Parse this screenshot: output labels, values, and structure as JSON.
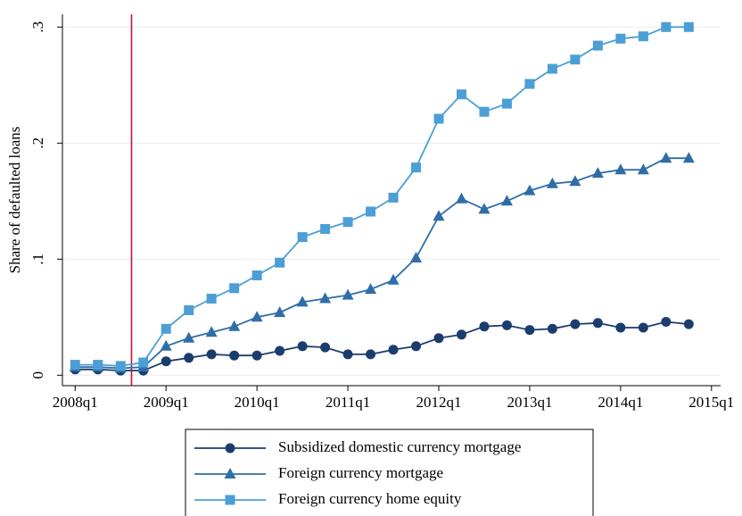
{
  "chart_data": {
    "type": "line",
    "y_label": "Share of defaulted loans",
    "x": [
      2008,
      2008.25,
      2008.5,
      2008.75,
      2009,
      2009.25,
      2009.5,
      2009.75,
      2010,
      2010.25,
      2010.5,
      2010.75,
      2011,
      2011.25,
      2011.5,
      2011.75,
      2012,
      2012.25,
      2012.5,
      2012.75,
      2013,
      2013.25,
      2013.5,
      2013.75,
      2014,
      2014.25,
      2014.5,
      2014.75
    ],
    "series": [
      {
        "name": "Subsidized domestic currency mortgage",
        "color": "#1b3d6e",
        "marker": "circle",
        "values": [
          0.005,
          0.005,
          0.004,
          0.004,
          0.012,
          0.015,
          0.018,
          0.017,
          0.017,
          0.021,
          0.025,
          0.024,
          0.018,
          0.018,
          0.022,
          0.025,
          0.032,
          0.035,
          0.042,
          0.043,
          0.039,
          0.04,
          0.044,
          0.045,
          0.041,
          0.041,
          0.046,
          0.044
        ]
      },
      {
        "name": "Foreign currency mortgage",
        "color": "#2e6ea8",
        "marker": "triangle",
        "values": [
          0.007,
          0.007,
          0.006,
          0.007,
          0.025,
          0.032,
          0.037,
          0.042,
          0.05,
          0.054,
          0.063,
          0.066,
          0.069,
          0.074,
          0.082,
          0.101,
          0.137,
          0.152,
          0.143,
          0.15,
          0.159,
          0.165,
          0.167,
          0.174,
          0.177,
          0.177,
          0.187,
          0.187
        ]
      },
      {
        "name": "Foreign currency home equity",
        "color": "#4b9fd5",
        "marker": "square",
        "values": [
          0.009,
          0.009,
          0.008,
          0.011,
          0.04,
          0.056,
          0.066,
          0.075,
          0.086,
          0.097,
          0.119,
          0.126,
          0.132,
          0.141,
          0.153,
          0.179,
          0.221,
          0.242,
          0.227,
          0.234,
          0.251,
          0.264,
          0.272,
          0.284,
          0.29,
          0.292,
          0.3,
          0.3
        ]
      }
    ],
    "xlim": [
      2007.86,
      2015.1
    ],
    "xticks": [
      {
        "value": 2008,
        "label": "2008q1"
      },
      {
        "value": 2009,
        "label": "2009q1"
      },
      {
        "value": 2010,
        "label": "2010q1"
      },
      {
        "value": 2011,
        "label": "2011q1"
      },
      {
        "value": 2012,
        "label": "2012q1"
      },
      {
        "value": 2013,
        "label": "2013q1"
      },
      {
        "value": 2014,
        "label": "2014q1"
      },
      {
        "value": 2015,
        "label": "2015q1"
      }
    ],
    "ylim": [
      -0.009,
      0.311
    ],
    "yticks": [
      0,
      {
        "value": 0.1,
        "label": ".1"
      },
      {
        "value": 0.2,
        "label": ".2"
      },
      {
        "value": 0.3,
        "label": ".3"
      }
    ],
    "grid": true,
    "vline": {
      "x": 2008.62,
      "color": "#c8102e"
    },
    "legend": "bottom"
  }
}
